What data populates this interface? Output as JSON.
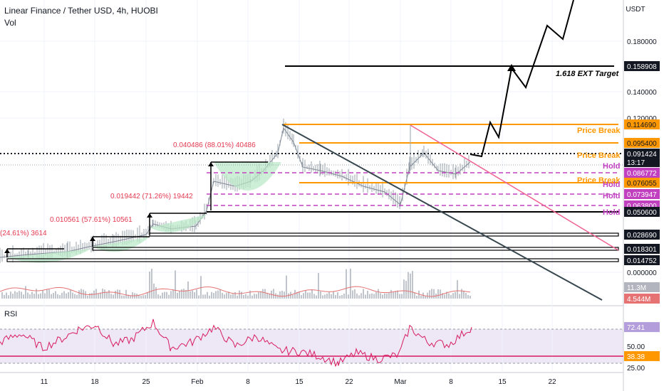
{
  "header": {
    "title": "Linear Finance / Tether USD, 4h, HUOBI",
    "subtitle": "Vol"
  },
  "colors": {
    "price": "#9aa3ad",
    "orange": "#ff9800",
    "magenta": "#c040c0",
    "black": "#000000",
    "trend_gray": "#37474f",
    "trend_red": "#f06292",
    "rsi_line": "#d81b60",
    "rsi_band": "#ede7f6",
    "volume": "#c0c4cc",
    "vol_ma": "#e57373",
    "green_fill": "#b9e8c6"
  },
  "chart_data": [
    {
      "type": "line",
      "panel": "price",
      "y_unit": "USDT",
      "x_ticks": [
        "11",
        "18",
        "25",
        "Feb",
        "8",
        "15",
        "22",
        "Mar",
        "8",
        "15",
        "22"
      ],
      "y_ticks": [
        "0.180000",
        "0.140000",
        "0.120000",
        "0.000000"
      ],
      "price_labels": [
        {
          "label": "0.158908",
          "style": "black",
          "value": 0.158908
        },
        {
          "label": "0.114690",
          "style": "orange",
          "value": 0.11469
        },
        {
          "label": "0.095400",
          "style": "orange",
          "value": 0.0954
        },
        {
          "label": "0.091424",
          "style": "current",
          "value": 0.091424
        },
        {
          "label": "13:17",
          "style": "current-time"
        },
        {
          "label": "0.086772",
          "style": "magenta",
          "value": 0.086772
        },
        {
          "label": "0.076055",
          "style": "orange",
          "value": 0.076055
        },
        {
          "label": "0.073947",
          "style": "magenta",
          "value": 0.073947
        },
        {
          "label": "0.063800",
          "style": "magenta",
          "value": 0.0638
        },
        {
          "label": "0.050600",
          "style": "black",
          "value": 0.0506
        },
        {
          "label": "0.028690",
          "style": "black",
          "value": 0.02869
        },
        {
          "label": "0.018301",
          "style": "black",
          "value": 0.018301
        },
        {
          "label": "0.014752",
          "style": "black",
          "value": 0.014752
        },
        {
          "label": "11.3M",
          "style": "volume"
        },
        {
          "label": "4.544M",
          "style": "volume-ma"
        }
      ],
      "levels": [
        {
          "value": 0.158908,
          "style": "black",
          "label": "1.618 EXT Target"
        },
        {
          "value": 0.11469,
          "style": "orange",
          "label": "Price Break"
        },
        {
          "value": 0.0954,
          "style": "orange",
          "label": "Price Break"
        },
        {
          "value": 0.086772,
          "style": "magenta-dashed",
          "label": "Hold"
        },
        {
          "value": 0.076055,
          "style": "orange",
          "label": "Price Break"
        },
        {
          "value": 0.073947,
          "style": "magenta-dashed",
          "label": "Hold"
        },
        {
          "value": 0.0638,
          "style": "magenta-dashed",
          "label": "Hold"
        },
        {
          "value": 0.0506,
          "style": "black",
          "label": "Hold"
        },
        {
          "value": 0.02869,
          "style": "black"
        },
        {
          "value": 0.018301,
          "style": "black"
        },
        {
          "value": 0.014752,
          "style": "black"
        }
      ],
      "measurements": [
        {
          "label": "(24.61%) 3614"
        },
        {
          "label": "0.010561 (57.61%) 10561"
        },
        {
          "label": "0.019442 (71.26%) 19442"
        },
        {
          "label": "0.040486 (88.01%) 40486"
        }
      ]
    },
    {
      "type": "line",
      "panel": "rsi",
      "title": "RSI",
      "y_ticks": [
        "50.00",
        "25.00"
      ],
      "band": [
        30,
        70
      ],
      "last_value_label": "72.41",
      "last_value": 72.41,
      "level_label": "38.38",
      "level_value": 38.38
    }
  ]
}
